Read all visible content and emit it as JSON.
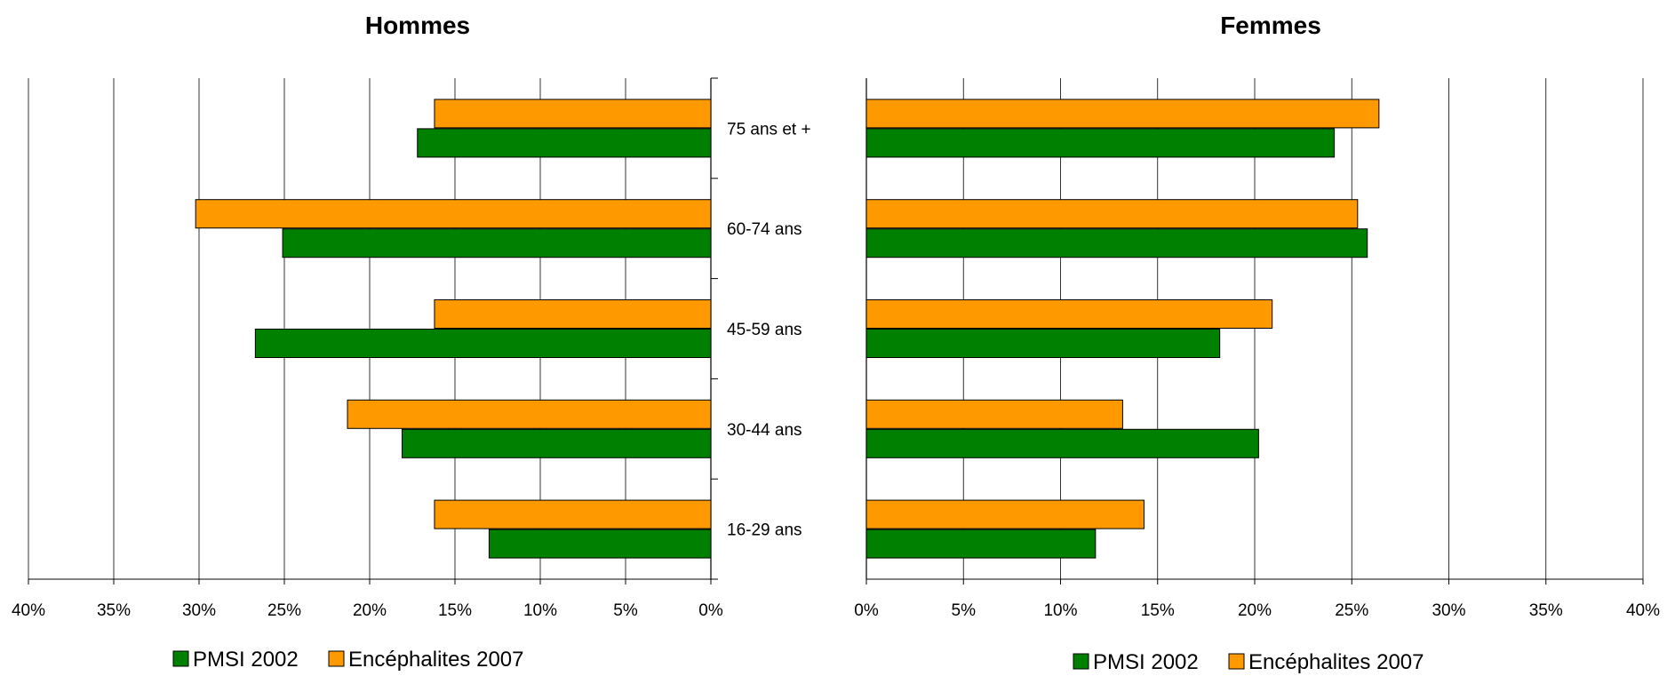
{
  "chart_data": [
    {
      "type": "bar",
      "orientation": "horizontal",
      "direction": "right-to-left",
      "title": "Hommes",
      "categories": [
        "16-29 ans",
        "30-44 ans",
        "45-59 ans",
        "60-74 ans",
        "75 ans et +"
      ],
      "series": [
        {
          "name": "PMSI 2002",
          "color": "#008000",
          "values": [
            13.0,
            18.1,
            26.7,
            25.1,
            17.2
          ]
        },
        {
          "name": "Encéphalites 2007",
          "color": "#FF9900",
          "values": [
            16.2,
            21.3,
            16.2,
            30.2,
            16.2
          ]
        }
      ],
      "xlim": [
        0,
        40
      ],
      "ticks": [
        "40%",
        "35%",
        "30%",
        "25%",
        "20%",
        "15%",
        "10%",
        "5%",
        "0%"
      ],
      "grid": true,
      "legend": "bottom"
    },
    {
      "type": "bar",
      "orientation": "horizontal",
      "direction": "left-to-right",
      "title": "Femmes",
      "categories": [
        "16-29 ans",
        "30-44 ans",
        "45-59 ans",
        "60-74 ans",
        "75 ans et +"
      ],
      "series": [
        {
          "name": "PMSI 2002",
          "color": "#008000",
          "values": [
            11.8,
            20.2,
            18.2,
            25.8,
            24.1
          ]
        },
        {
          "name": "Encéphalites 2007",
          "color": "#FF9900",
          "values": [
            14.3,
            13.2,
            20.9,
            25.3,
            26.4
          ]
        }
      ],
      "xlim": [
        0,
        40
      ],
      "ticks": [
        "0%",
        "5%",
        "10%",
        "15%",
        "20%",
        "25%",
        "30%",
        "35%",
        "40%"
      ],
      "grid": true,
      "legend": "bottom"
    }
  ]
}
